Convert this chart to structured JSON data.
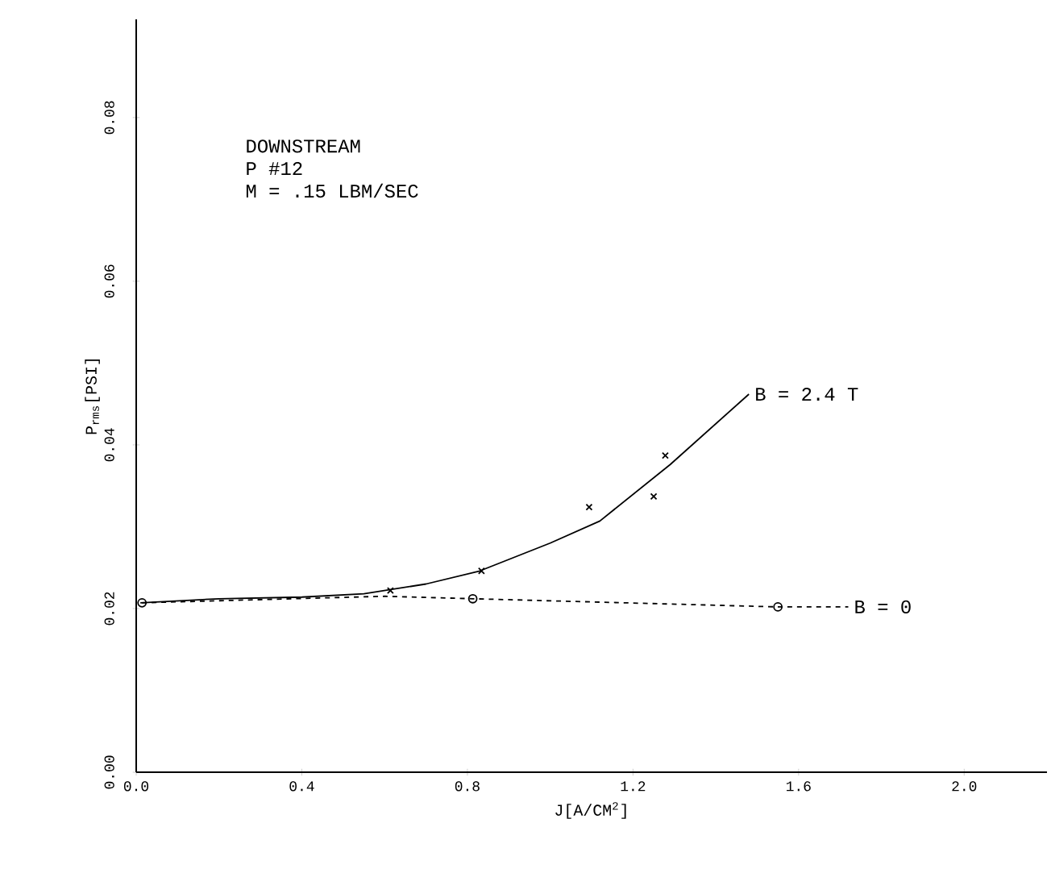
{
  "chart_data": {
    "type": "line",
    "xlabel": "J[A/CM$^{2}$]",
    "ylabel": "P$_{rms}$[PSI]",
    "annotations": [
      "DOWNSTREAM",
      "P #12",
      "M = .15 LBM/SEC"
    ],
    "xlim": [
      0,
      2.2
    ],
    "ylim": [
      0,
      0.092
    ],
    "xticks": [
      {
        "value": 0,
        "label": "0.0"
      },
      {
        "value": 0.4,
        "label": "0.4"
      },
      {
        "value": 0.8,
        "label": "0.8"
      },
      {
        "value": 1.2,
        "label": "1.2"
      },
      {
        "value": 1.6,
        "label": "1.6"
      },
      {
        "value": 2.0,
        "label": "2.0"
      }
    ],
    "yticks": [
      {
        "value": 0,
        "label": "0.00"
      },
      {
        "value": 0.02,
        "label": "0.02"
      },
      {
        "value": 0.04,
        "label": "0.04"
      },
      {
        "value": 0.06,
        "label": "0.06"
      },
      {
        "value": 0.08,
        "label": "0.08"
      }
    ],
    "series": [
      {
        "type": "scatter",
        "marker": "cross",
        "color": "#000000",
        "x": [
          0.614,
          0.834,
          1.094,
          1.25,
          1.278
        ],
        "values": [
          0.0222,
          0.0246,
          0.0324,
          0.0337,
          0.0387
        ]
      },
      {
        "name": "B = 2.4 T",
        "line_style": "solid",
        "color": "#000000",
        "x": [
          0.01,
          0.2,
          0.4,
          0.55,
          0.7,
          0.83,
          1.0,
          1.12,
          1.29,
          1.48
        ],
        "values": [
          0.0207,
          0.0212,
          0.0214,
          0.0218,
          0.023,
          0.0246,
          0.028,
          0.0307,
          0.0376,
          0.0462
        ]
      },
      {
        "type": "scatter",
        "marker": "circle",
        "color": "#000000",
        "x": [
          0.014,
          0.813,
          1.55
        ],
        "values": [
          0.0207,
          0.0212,
          0.0202
        ]
      },
      {
        "name": "B = 0",
        "line_style": "dashed",
        "color": "#000000",
        "x": [
          0.014,
          0.6,
          0.813,
          1.55,
          1.72
        ],
        "values": [
          0.0207,
          0.0215,
          0.0212,
          0.0202,
          0.0202
        ]
      }
    ]
  }
}
